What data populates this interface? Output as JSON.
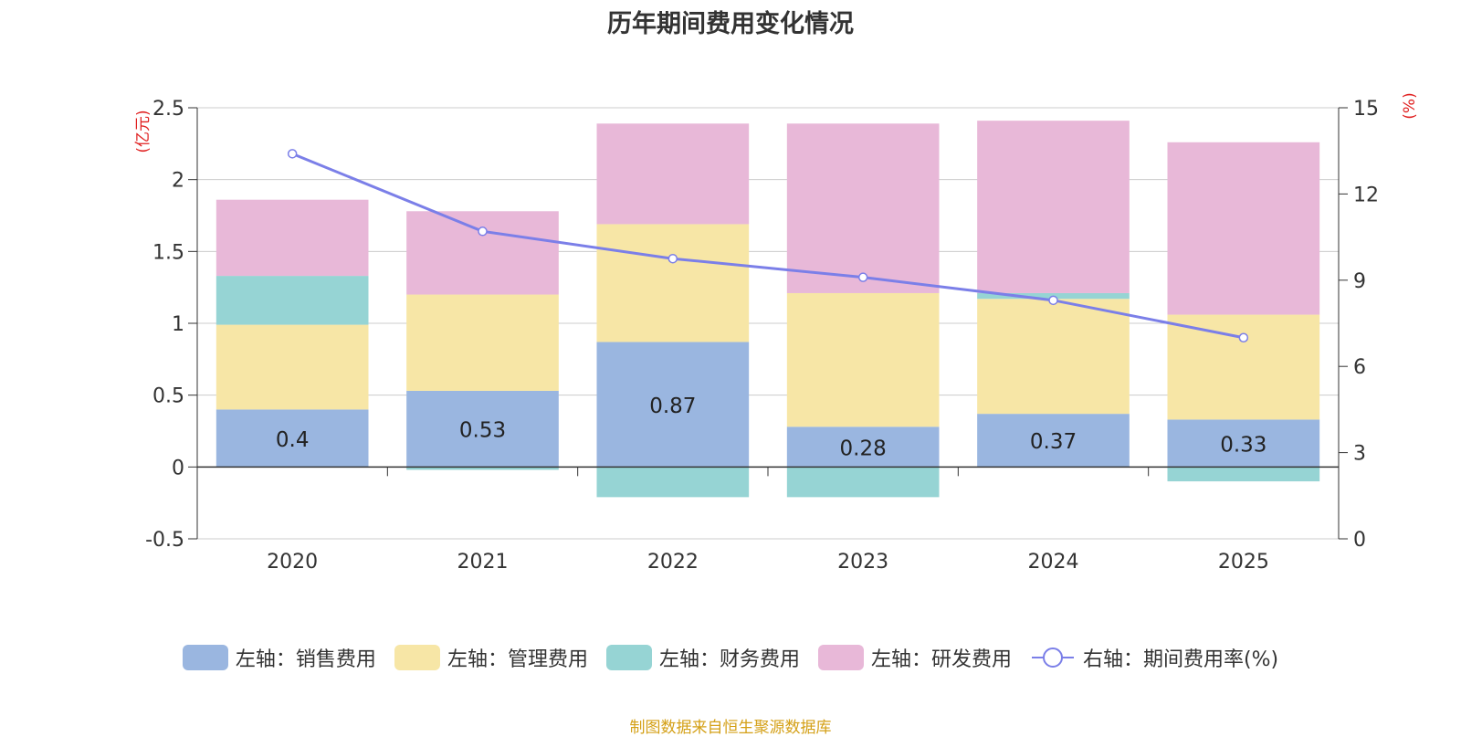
{
  "chart_data": {
    "type": "bar",
    "stacked": true,
    "title": "历年期间费用变化情况",
    "categories": [
      "2020",
      "2021",
      "2022",
      "2023",
      "2024",
      "2025"
    ],
    "left_axis": {
      "label": "(亿元)",
      "ylim": [
        -0.5,
        2.5
      ],
      "ticks": [
        "2.5",
        "2",
        "1.5",
        "1",
        "0.5",
        "0",
        "-0.5"
      ]
    },
    "right_axis": {
      "label": "(%)",
      "ylim": [
        0,
        15
      ],
      "ticks": [
        "15",
        "12",
        "9",
        "6",
        "3",
        "0"
      ]
    },
    "series": [
      {
        "name": "左轴：销售费用",
        "axis": "left",
        "color": "#9ab6e0",
        "values": [
          0.4,
          0.53,
          0.87,
          0.28,
          0.37,
          0.33
        ],
        "data_labels": [
          "0.4",
          "0.53",
          "0.87",
          "0.28",
          "0.37",
          "0.33"
        ]
      },
      {
        "name": "左轴：管理费用",
        "axis": "left",
        "color": "#f7e6a6",
        "values": [
          0.59,
          0.67,
          0.82,
          0.93,
          0.8,
          0.73
        ]
      },
      {
        "name": "左轴：财务费用",
        "axis": "left",
        "color": "#96d4d4",
        "values": [
          0.34,
          -0.02,
          -0.21,
          -0.21,
          0.04,
          -0.1
        ]
      },
      {
        "name": "左轴：研发费用",
        "axis": "left",
        "color": "#e8b8d8",
        "values": [
          0.53,
          0.58,
          0.7,
          1.18,
          1.2,
          1.2
        ]
      },
      {
        "name": "右轴：期间费用率(%)",
        "axis": "right",
        "type": "line",
        "color": "#7b7fe8",
        "values": [
          13.4,
          10.7,
          9.75,
          9.1,
          8.3,
          7.0
        ]
      }
    ]
  },
  "source_note": "制图数据来自恒生聚源数据库"
}
